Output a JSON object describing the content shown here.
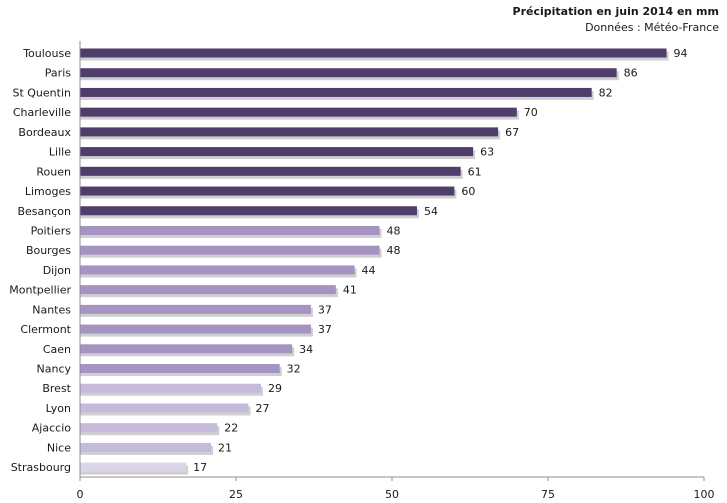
{
  "chart_data": {
    "type": "bar",
    "orientation": "horizontal",
    "title": "Précipitation en juin 2014 en mm",
    "subtitle": "Données : Météo-France",
    "categories": [
      "Toulouse",
      "Paris",
      "St Quentin",
      "Charleville",
      "Bordeaux",
      "Lille",
      "Rouen",
      "Limoges",
      "Besançon",
      "Poitiers",
      "Bourges",
      "Dijon",
      "Montpellier",
      "Nantes",
      "Clermont",
      "Caen",
      "Nancy",
      "Brest",
      "Lyon",
      "Ajaccio",
      "Nice",
      "Strasbourg"
    ],
    "values": [
      94,
      86,
      82,
      70,
      67,
      63,
      61,
      60,
      54,
      48,
      48,
      44,
      41,
      37,
      37,
      34,
      32,
      29,
      27,
      22,
      21,
      17
    ],
    "xlim": [
      0,
      100
    ],
    "xticks": [
      0,
      25,
      50,
      75,
      100
    ],
    "grid": false,
    "legend": "none",
    "colors": {
      "dark": "#4f3d6b",
      "medium": "#a593c2",
      "light": "#c5bad9",
      "lightest": "#dcd4e7",
      "axis": "#8c8c8c"
    }
  }
}
